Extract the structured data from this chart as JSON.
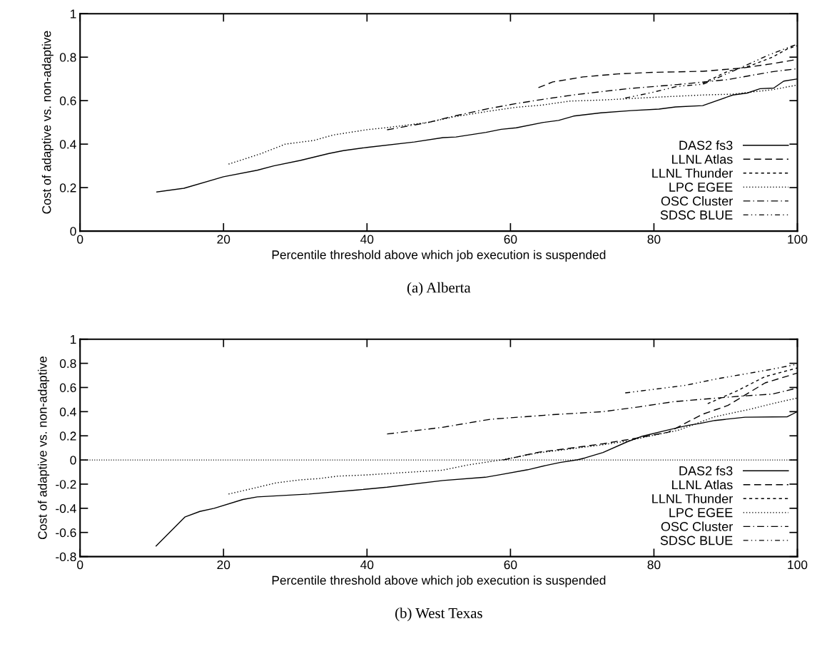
{
  "chart_data": [
    {
      "type": "line",
      "xlabel": "Percentile threshold above which job execution is suspended",
      "ylabel": "Cost of adaptive vs. non-adaptive",
      "annotations": [
        "(a) Alberta"
      ],
      "xlim": [
        0,
        100
      ],
      "ylim": [
        0,
        1
      ],
      "xticks": [
        0,
        20,
        40,
        60,
        80,
        100
      ],
      "yticks": [
        0,
        0.2,
        0.4,
        0.6,
        0.8,
        1
      ],
      "grid": false,
      "legend": "bottom right",
      "marker": "none",
      "series": [
        {
          "name": "DAS2 fs3",
          "color": "#000000",
          "line_style": "solid",
          "x": [
            10.7,
            14.5,
            20,
            24.7,
            27,
            30.7,
            34.7,
            36.7,
            40,
            46.6,
            50.6,
            52.4,
            56.6,
            58.7,
            60.8,
            64.6,
            66.7,
            68.8,
            72.6,
            76.8,
            80.7,
            83,
            86.8,
            91,
            93,
            94.8,
            96.7,
            98.1,
            100
          ],
          "values": [
            0.18,
            0.197,
            0.25,
            0.28,
            0.3,
            0.325,
            0.357,
            0.37,
            0.385,
            0.41,
            0.43,
            0.433,
            0.454,
            0.468,
            0.475,
            0.5,
            0.509,
            0.529,
            0.544,
            0.554,
            0.561,
            0.571,
            0.577,
            0.626,
            0.635,
            0.655,
            0.658,
            0.69,
            0.7
          ]
        },
        {
          "name": "LLNL Atlas",
          "color": "#000000",
          "line_style": "long dash",
          "x": [
            63.9,
            65.9,
            70.1,
            75,
            79.8,
            86.8,
            92.3,
            96.5,
            98.3,
            100
          ],
          "values": [
            0.66,
            0.686,
            0.709,
            0.723,
            0.73,
            0.735,
            0.75,
            0.77,
            0.78,
            0.79
          ]
        },
        {
          "name": "LLNL Thunder",
          "color": "#000000",
          "line_style": "short dash",
          "x": [
            86.8,
            90.3,
            93.4,
            96.5,
            98.6,
            100
          ],
          "values": [
            0.68,
            0.735,
            0.76,
            0.8,
            0.838,
            0.853
          ]
        },
        {
          "name": "LPC EGEE",
          "color": "#000000",
          "line_style": "dotted",
          "x": [
            20.7,
            25.3,
            28.6,
            32.6,
            35.3,
            39.9,
            43.3,
            48.5,
            52,
            56.9,
            60.7,
            64.5,
            68.3,
            72.9,
            79.8,
            86.8,
            91,
            96.5,
            100
          ],
          "values": [
            0.308,
            0.357,
            0.4,
            0.417,
            0.442,
            0.466,
            0.478,
            0.5,
            0.525,
            0.551,
            0.569,
            0.58,
            0.598,
            0.603,
            0.615,
            0.626,
            0.63,
            0.65,
            0.672
          ]
        },
        {
          "name": "OSC Cluster",
          "color": "#000000",
          "line_style": "dash-dot",
          "x": [
            42.8,
            48.6,
            52,
            56.9,
            60.7,
            64.5,
            68.7,
            76.3,
            83.3,
            90.3,
            96.5,
            100
          ],
          "values": [
            0.466,
            0.5,
            0.528,
            0.563,
            0.586,
            0.606,
            0.626,
            0.655,
            0.674,
            0.697,
            0.733,
            0.747
          ]
        },
        {
          "name": "SDSC BLUE",
          "color": "#000000",
          "line_style": "dash-dot-dot",
          "x": [
            76,
            79.8,
            83.3,
            86.8,
            92,
            96,
            100
          ],
          "values": [
            0.612,
            0.638,
            0.666,
            0.675,
            0.75,
            0.81,
            0.86
          ]
        }
      ]
    },
    {
      "type": "line",
      "xlabel": "Percentile threshold above which job execution is suspended",
      "ylabel": "Cost of adaptive vs. non-adaptive",
      "annotations": [
        "(b) West Texas"
      ],
      "xlim": [
        0,
        100
      ],
      "ylim": [
        -0.8,
        1
      ],
      "xticks": [
        0,
        20,
        40,
        60,
        80,
        100
      ],
      "yticks": [
        -0.8,
        -0.6,
        -0.4,
        -0.2,
        0,
        0.2,
        0.4,
        0.6,
        0.8,
        1
      ],
      "grid": false,
      "legend": "bottom right",
      "marker": "none",
      "ref_lines": [
        {
          "axis": "y",
          "value": 0,
          "color": "#000000",
          "line_style": "dotted"
        }
      ],
      "series": [
        {
          "name": "DAS2 fs3",
          "color": "#000000",
          "line_style": "solid",
          "x": [
            10.6,
            14.6,
            16.7,
            18.7,
            22.7,
            24.7,
            31.9,
            38.6,
            42.8,
            50.6,
            56.5,
            58.9,
            62.4,
            64.9,
            66.9,
            69.4,
            70.4,
            72.9,
            76.3,
            78.4,
            81.5,
            84.7,
            86.4,
            88.5,
            92.7,
            98.6,
            100
          ],
          "values": [
            -0.712,
            -0.473,
            -0.426,
            -0.4,
            -0.327,
            -0.306,
            -0.282,
            -0.249,
            -0.225,
            -0.17,
            -0.143,
            -0.118,
            -0.081,
            -0.046,
            -0.021,
            0.002,
            0.017,
            0.062,
            0.151,
            0.197,
            0.242,
            0.286,
            0.302,
            0.327,
            0.354,
            0.358,
            0.4
          ]
        },
        {
          "name": "LLNL Atlas",
          "color": "#000000",
          "line_style": "long dash",
          "x": [
            59,
            64,
            68,
            73,
            78,
            82,
            86.8,
            90.3,
            95.5,
            100
          ],
          "values": [
            0.0,
            0.065,
            0.095,
            0.135,
            0.185,
            0.23,
            0.379,
            0.451,
            0.638,
            0.72
          ]
        },
        {
          "name": "LLNL Thunder",
          "color": "#000000",
          "line_style": "short dash",
          "x": [
            87.5,
            91.5,
            95.5,
            100
          ],
          "values": [
            0.466,
            0.57,
            0.69,
            0.762
          ]
        },
        {
          "name": "LPC EGEE",
          "color": "#000000",
          "line_style": "dotted",
          "x": [
            20.7,
            24,
            27.3,
            30.6,
            33.3,
            35.9,
            39.9,
            46.5,
            50.5,
            54.1,
            58.9,
            63.8,
            68,
            72.9,
            76.3,
            79.8,
            83.3,
            88.5,
            93.4,
            96.5,
            100
          ],
          "values": [
            -0.282,
            -0.237,
            -0.19,
            -0.165,
            -0.154,
            -0.134,
            -0.124,
            -0.099,
            -0.085,
            -0.041,
            0.002,
            0.058,
            0.089,
            0.126,
            0.157,
            0.203,
            0.244,
            0.358,
            0.42,
            0.466,
            0.513
          ]
        },
        {
          "name": "OSC Cluster",
          "color": "#000000",
          "line_style": "dash-dot",
          "x": [
            42.8,
            50.5,
            57.2,
            65.9,
            72.9,
            78.1,
            82.7,
            86.8,
            92,
            96.5,
            100
          ],
          "values": [
            0.215,
            0.27,
            0.337,
            0.375,
            0.4,
            0.441,
            0.482,
            0.503,
            0.528,
            0.545,
            0.596
          ]
        },
        {
          "name": "SDSC BLUE",
          "color": "#000000",
          "line_style": "dash-dot-dot",
          "x": [
            76,
            84.3,
            88.9,
            96.1,
            100
          ],
          "values": [
            0.555,
            0.617,
            0.673,
            0.747,
            0.793
          ]
        }
      ]
    }
  ]
}
